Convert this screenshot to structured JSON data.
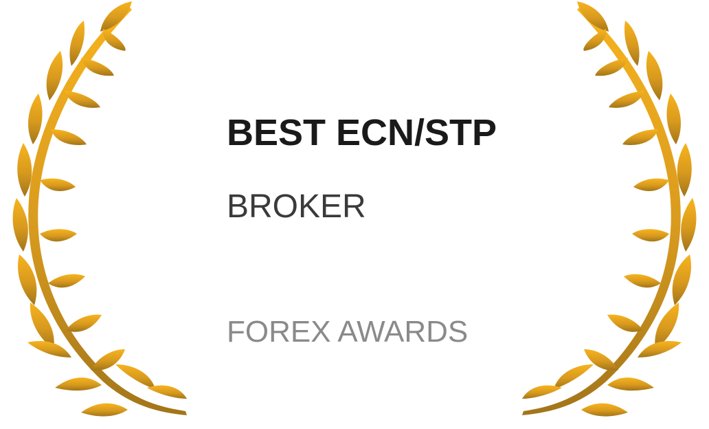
{
  "award": {
    "title": "BEST ECN/STP",
    "subtitle": "BROKER",
    "organization": "FOREX AWARDS"
  },
  "icons": {
    "left": "laurel-branch-left-icon",
    "right": "laurel-branch-right-icon"
  },
  "colors": {
    "gold_top": "#f6b01c",
    "gold_bottom": "#a97a1a",
    "title": "#1a1a1a",
    "subtitle": "#3a3a3a",
    "organization": "#8a8a8a",
    "background": "#ffffff"
  }
}
